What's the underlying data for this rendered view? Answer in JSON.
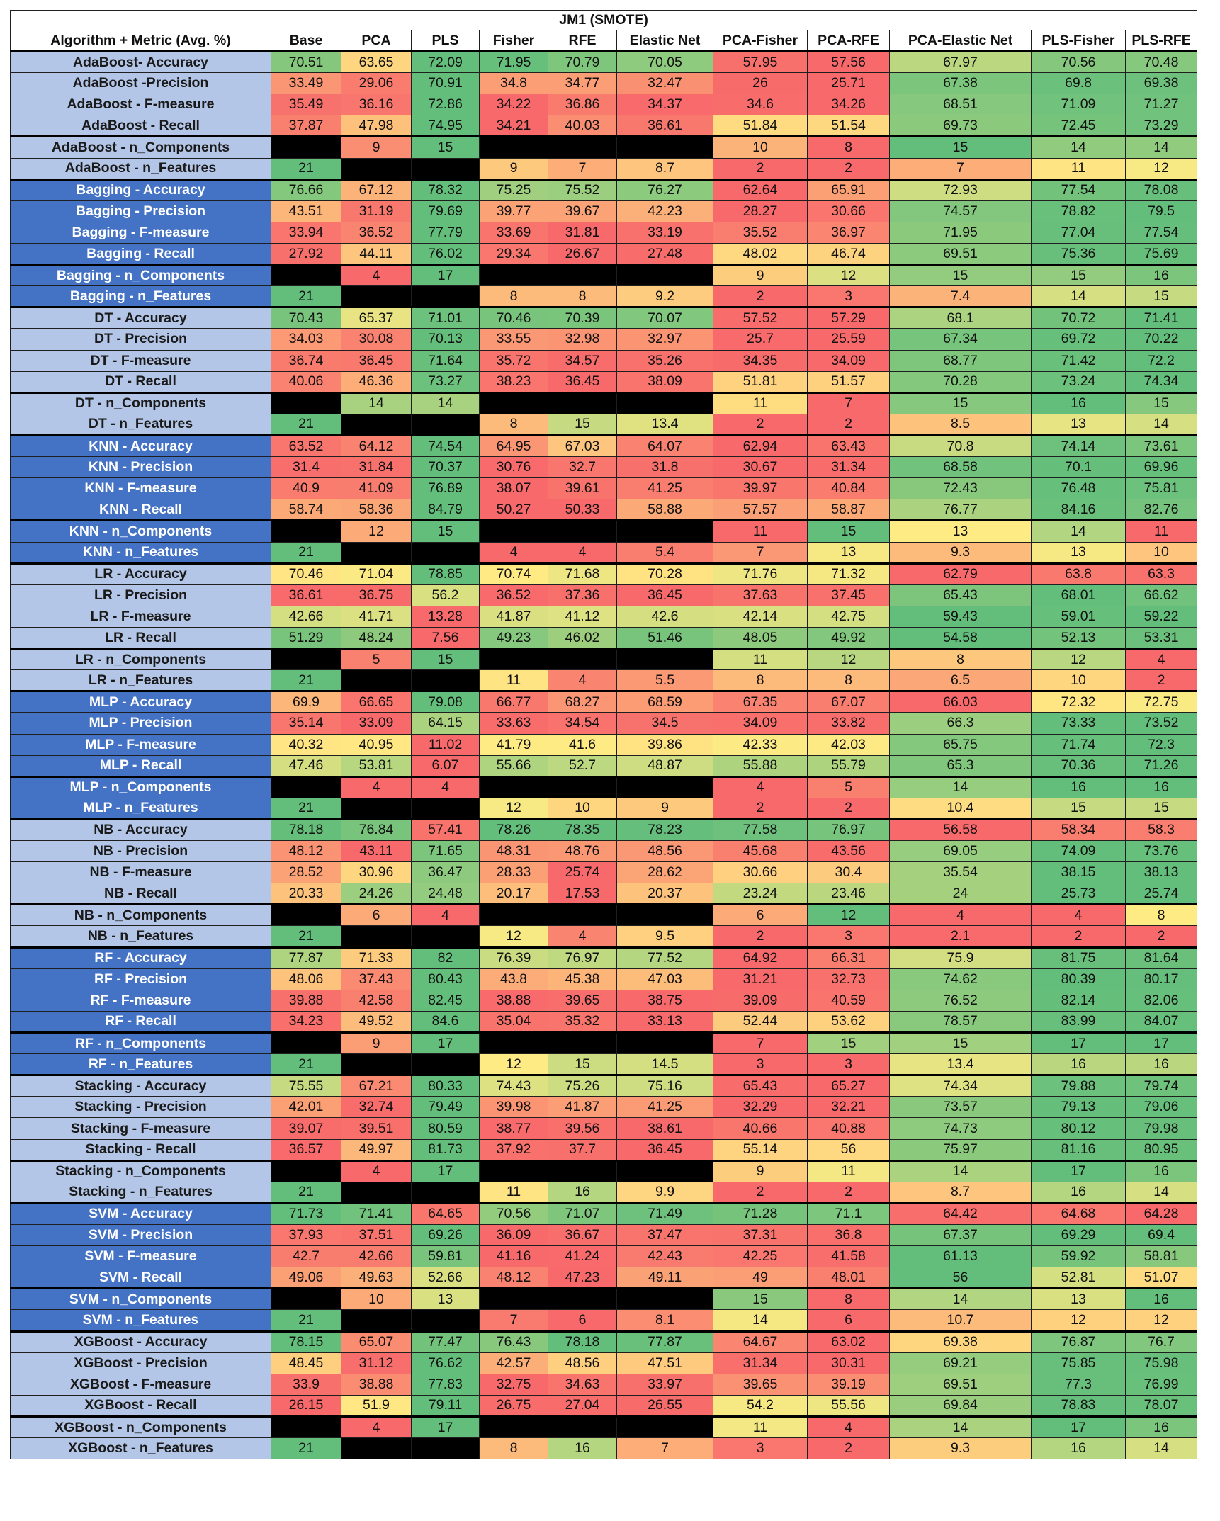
{
  "title": "JM1 (SMOTE)",
  "columns": [
    "Algorithm + Metric (Avg. %)",
    "Base",
    "PCA",
    "PLS",
    "Fisher",
    "RFE",
    "Elastic Net",
    "PCA-Fisher",
    "PCA-RFE",
    "PCA-Elastic Net",
    "PLS-Fisher",
    "PLS-RFE"
  ],
  "colors": {
    "light_label": "#b4c6e7",
    "dark_label": "#4472c4",
    "blank_cell": "#000000",
    "scale_low": "#f8696b",
    "scale_mid": "#ffeb84",
    "scale_high": "#63be7b"
  },
  "rows": [
    {
      "label": "AdaBoost- Accuracy",
      "values": [
        "70.51",
        "63.65",
        "72.09",
        "71.95",
        "70.79",
        "70.05",
        "57.95",
        "57.56",
        "67.97",
        "70.56",
        "70.48"
      ]
    },
    {
      "label": "AdaBoost -Precision",
      "values": [
        "33.49",
        "29.06",
        "70.91",
        "34.8",
        "34.77",
        "32.47",
        "26",
        "25.71",
        "67.38",
        "69.8",
        "69.38"
      ]
    },
    {
      "label": "AdaBoost - F-measure",
      "values": [
        "35.49",
        "36.16",
        "72.86",
        "34.22",
        "36.86",
        "34.37",
        "34.6",
        "34.26",
        "68.51",
        "71.09",
        "71.27"
      ]
    },
    {
      "label": "AdaBoost - Recall",
      "values": [
        "37.87",
        "47.98",
        "74.95",
        "34.21",
        "40.03",
        "36.61",
        "51.84",
        "51.54",
        "69.73",
        "72.45",
        "73.29"
      ]
    },
    {
      "label": "AdaBoost - n_Components",
      "values": [
        "",
        "9",
        "15",
        "",
        "",
        "",
        "10",
        "8",
        "15",
        "14",
        "14"
      ]
    },
    {
      "label": "AdaBoost - n_Features",
      "values": [
        "21",
        "",
        "",
        "9",
        "7",
        "8.7",
        "2",
        "2",
        "7",
        "11",
        "12"
      ]
    },
    {
      "label": "Bagging - Accuracy",
      "values": [
        "76.66",
        "67.12",
        "78.32",
        "75.25",
        "75.52",
        "76.27",
        "62.64",
        "65.91",
        "72.93",
        "77.54",
        "78.08"
      ]
    },
    {
      "label": "Bagging - Precision",
      "values": [
        "43.51",
        "31.19",
        "79.69",
        "39.77",
        "39.67",
        "42.23",
        "28.27",
        "30.66",
        "74.57",
        "78.82",
        "79.5"
      ]
    },
    {
      "label": "Bagging - F-measure",
      "values": [
        "33.94",
        "36.52",
        "77.79",
        "33.69",
        "31.81",
        "33.19",
        "35.52",
        "36.97",
        "71.95",
        "77.04",
        "77.54"
      ]
    },
    {
      "label": "Bagging - Recall",
      "values": [
        "27.92",
        "44.11",
        "76.02",
        "29.34",
        "26.67",
        "27.48",
        "48.02",
        "46.74",
        "69.51",
        "75.36",
        "75.69"
      ]
    },
    {
      "label": "Bagging - n_Components",
      "values": [
        "",
        "4",
        "17",
        "",
        "",
        "",
        "9",
        "12",
        "15",
        "15",
        "16"
      ]
    },
    {
      "label": "Bagging - n_Features",
      "values": [
        "21",
        "",
        "",
        "8",
        "8",
        "9.2",
        "2",
        "3",
        "7.4",
        "14",
        "15"
      ]
    },
    {
      "label": "DT - Accuracy",
      "values": [
        "70.43",
        "65.37",
        "71.01",
        "70.46",
        "70.39",
        "70.07",
        "57.52",
        "57.29",
        "68.1",
        "70.72",
        "71.41"
      ]
    },
    {
      "label": "DT - Precision",
      "values": [
        "34.03",
        "30.08",
        "70.13",
        "33.55",
        "32.98",
        "32.97",
        "25.7",
        "25.59",
        "67.34",
        "69.72",
        "70.22"
      ]
    },
    {
      "label": "DT - F-measure",
      "values": [
        "36.74",
        "36.45",
        "71.64",
        "35.72",
        "34.57",
        "35.26",
        "34.35",
        "34.09",
        "68.77",
        "71.42",
        "72.2"
      ]
    },
    {
      "label": "DT - Recall",
      "values": [
        "40.06",
        "46.36",
        "73.27",
        "38.23",
        "36.45",
        "38.09",
        "51.81",
        "51.57",
        "70.28",
        "73.24",
        "74.34"
      ]
    },
    {
      "label": "DT - n_Components",
      "values": [
        "",
        "14",
        "14",
        "",
        "",
        "",
        "11",
        "7",
        "15",
        "16",
        "15"
      ]
    },
    {
      "label": "DT - n_Features",
      "values": [
        "21",
        "",
        "",
        "8",
        "15",
        "13.4",
        "2",
        "2",
        "8.5",
        "13",
        "14"
      ]
    },
    {
      "label": "KNN - Accuracy",
      "values": [
        "63.52",
        "64.12",
        "74.54",
        "64.95",
        "67.03",
        "64.07",
        "62.94",
        "63.43",
        "70.8",
        "74.14",
        "73.61"
      ]
    },
    {
      "label": "KNN - Precision",
      "values": [
        "31.4",
        "31.84",
        "70.37",
        "30.76",
        "32.7",
        "31.8",
        "30.67",
        "31.34",
        "68.58",
        "70.1",
        "69.96"
      ]
    },
    {
      "label": "KNN - F-measure",
      "values": [
        "40.9",
        "41.09",
        "76.89",
        "38.07",
        "39.61",
        "41.25",
        "39.97",
        "40.84",
        "72.43",
        "76.48",
        "75.81"
      ]
    },
    {
      "label": "KNN - Recall",
      "values": [
        "58.74",
        "58.36",
        "84.79",
        "50.27",
        "50.33",
        "58.88",
        "57.57",
        "58.87",
        "76.77",
        "84.16",
        "82.76"
      ]
    },
    {
      "label": "KNN - n_Components",
      "values": [
        "",
        "12",
        "15",
        "",
        "",
        "",
        "11",
        "15",
        "13",
        "14",
        "11"
      ]
    },
    {
      "label": "KNN - n_Features",
      "values": [
        "21",
        "",
        "",
        "4",
        "4",
        "5.4",
        "7",
        "13",
        "9.3",
        "13",
        "10"
      ]
    },
    {
      "label": "LR - Accuracy",
      "values": [
        "70.46",
        "71.04",
        "78.85",
        "70.74",
        "71.68",
        "70.28",
        "71.76",
        "71.32",
        "62.79",
        "63.8",
        "63.3"
      ]
    },
    {
      "label": "LR - Precision",
      "values": [
        "36.61",
        "36.75",
        "56.2",
        "36.52",
        "37.36",
        "36.45",
        "37.63",
        "37.45",
        "65.43",
        "68.01",
        "66.62"
      ]
    },
    {
      "label": "LR - F-measure",
      "values": [
        "42.66",
        "41.71",
        "13.28",
        "41.87",
        "41.12",
        "42.6",
        "42.14",
        "42.75",
        "59.43",
        "59.01",
        "59.22"
      ]
    },
    {
      "label": "LR - Recall",
      "values": [
        "51.29",
        "48.24",
        "7.56",
        "49.23",
        "46.02",
        "51.46",
        "48.05",
        "49.92",
        "54.58",
        "52.13",
        "53.31"
      ]
    },
    {
      "label": "LR - n_Components",
      "values": [
        "",
        "5",
        "15",
        "",
        "",
        "",
        "11",
        "12",
        "8",
        "12",
        "4"
      ]
    },
    {
      "label": "LR - n_Features",
      "values": [
        "21",
        "",
        "",
        "11",
        "4",
        "5.5",
        "8",
        "8",
        "6.5",
        "10",
        "2"
      ]
    },
    {
      "label": "MLP - Accuracy",
      "values": [
        "69.9",
        "66.65",
        "79.08",
        "66.77",
        "68.27",
        "68.59",
        "67.35",
        "67.07",
        "66.03",
        "72.32",
        "72.75"
      ]
    },
    {
      "label": "MLP -  Precision",
      "values": [
        "35.14",
        "33.09",
        "64.15",
        "33.63",
        "34.54",
        "34.5",
        "34.09",
        "33.82",
        "66.3",
        "73.33",
        "73.52"
      ]
    },
    {
      "label": "MLP -  F-measure",
      "values": [
        "40.32",
        "40.95",
        "11.02",
        "41.79",
        "41.6",
        "39.86",
        "42.33",
        "42.03",
        "65.75",
        "71.74",
        "72.3"
      ]
    },
    {
      "label": "MLP -  Recall",
      "values": [
        "47.46",
        "53.81",
        "6.07",
        "55.66",
        "52.7",
        "48.87",
        "55.88",
        "55.79",
        "65.3",
        "70.36",
        "71.26"
      ]
    },
    {
      "label": "MLP - n_Components",
      "values": [
        "",
        "4",
        "4",
        "",
        "",
        "",
        "4",
        "5",
        "14",
        "16",
        "16"
      ]
    },
    {
      "label": "MLP - n_Features",
      "values": [
        "21",
        "",
        "",
        "12",
        "10",
        "9",
        "2",
        "2",
        "10.4",
        "15",
        "15"
      ]
    },
    {
      "label": "NB - Accuracy",
      "values": [
        "78.18",
        "76.84",
        "57.41",
        "78.26",
        "78.35",
        "78.23",
        "77.58",
        "76.97",
        "56.58",
        "58.34",
        "58.3"
      ]
    },
    {
      "label": "NB - Precision",
      "values": [
        "48.12",
        "43.11",
        "71.65",
        "48.31",
        "48.76",
        "48.56",
        "45.68",
        "43.56",
        "69.05",
        "74.09",
        "73.76"
      ]
    },
    {
      "label": "NB - F-measure",
      "values": [
        "28.52",
        "30.96",
        "36.47",
        "28.33",
        "25.74",
        "28.62",
        "30.66",
        "30.4",
        "35.54",
        "38.15",
        "38.13"
      ]
    },
    {
      "label": "NB - Recall",
      "values": [
        "20.33",
        "24.26",
        "24.48",
        "20.17",
        "17.53",
        "20.37",
        "23.24",
        "23.46",
        "24",
        "25.73",
        "25.74"
      ]
    },
    {
      "label": "NB - n_Components",
      "values": [
        "",
        "6",
        "4",
        "",
        "",
        "",
        "6",
        "12",
        "4",
        "4",
        "8"
      ]
    },
    {
      "label": "NB - n_Features",
      "values": [
        "21",
        "",
        "",
        "12",
        "4",
        "9.5",
        "2",
        "3",
        "2.1",
        "2",
        "2"
      ]
    },
    {
      "label": "RF - Accuracy",
      "values": [
        "77.87",
        "71.33",
        "82",
        "76.39",
        "76.97",
        "77.52",
        "64.92",
        "66.31",
        "75.9",
        "81.75",
        "81.64"
      ]
    },
    {
      "label": "RF - Precision",
      "values": [
        "48.06",
        "37.43",
        "80.43",
        "43.8",
        "45.38",
        "47.03",
        "31.21",
        "32.73",
        "74.62",
        "80.39",
        "80.17"
      ]
    },
    {
      "label": "RF - F-measure",
      "values": [
        "39.88",
        "42.58",
        "82.45",
        "38.88",
        "39.65",
        "38.75",
        "39.09",
        "40.59",
        "76.52",
        "82.14",
        "82.06"
      ]
    },
    {
      "label": "RF - Recall",
      "values": [
        "34.23",
        "49.52",
        "84.6",
        "35.04",
        "35.32",
        "33.13",
        "52.44",
        "53.62",
        "78.57",
        "83.99",
        "84.07"
      ]
    },
    {
      "label": "RF - n_Components",
      "values": [
        "",
        "9",
        "17",
        "",
        "",
        "",
        "7",
        "15",
        "15",
        "17",
        "17"
      ]
    },
    {
      "label": "RF - n_Features",
      "values": [
        "21",
        "",
        "",
        "12",
        "15",
        "14.5",
        "3",
        "3",
        "13.4",
        "16",
        "16"
      ]
    },
    {
      "label": "Stacking - Accuracy",
      "values": [
        "75.55",
        "67.21",
        "80.33",
        "74.43",
        "75.26",
        "75.16",
        "65.43",
        "65.27",
        "74.34",
        "79.88",
        "79.74"
      ]
    },
    {
      "label": "Stacking - Precision",
      "values": [
        "42.01",
        "32.74",
        "79.49",
        "39.98",
        "41.87",
        "41.25",
        "32.29",
        "32.21",
        "73.57",
        "79.13",
        "79.06"
      ]
    },
    {
      "label": "Stacking - F-measure",
      "values": [
        "39.07",
        "39.51",
        "80.59",
        "38.77",
        "39.56",
        "38.61",
        "40.66",
        "40.88",
        "74.73",
        "80.12",
        "79.98"
      ]
    },
    {
      "label": "Stacking - Recall",
      "values": [
        "36.57",
        "49.97",
        "81.73",
        "37.92",
        "37.7",
        "36.45",
        "55.14",
        "56",
        "75.97",
        "81.16",
        "80.95"
      ]
    },
    {
      "label": "Stacking - n_Components",
      "values": [
        "",
        "4",
        "17",
        "",
        "",
        "",
        "9",
        "11",
        "14",
        "17",
        "16"
      ]
    },
    {
      "label": "Stacking - n_Features",
      "values": [
        "21",
        "",
        "",
        "11",
        "16",
        "9.9",
        "2",
        "2",
        "8.7",
        "16",
        "14"
      ]
    },
    {
      "label": "SVM - Accuracy",
      "values": [
        "71.73",
        "71.41",
        "64.65",
        "70.56",
        "71.07",
        "71.49",
        "71.28",
        "71.1",
        "64.42",
        "64.68",
        "64.28"
      ]
    },
    {
      "label": "SVM - Precision",
      "values": [
        "37.93",
        "37.51",
        "69.26",
        "36.09",
        "36.67",
        "37.47",
        "37.31",
        "36.8",
        "67.37",
        "69.29",
        "69.4"
      ]
    },
    {
      "label": "SVM - F-measure",
      "values": [
        "42.7",
        "42.66",
        "59.81",
        "41.16",
        "41.24",
        "42.43",
        "42.25",
        "41.58",
        "61.13",
        "59.92",
        "58.81"
      ]
    },
    {
      "label": "SVM - Recall",
      "values": [
        "49.06",
        "49.63",
        "52.66",
        "48.12",
        "47.23",
        "49.11",
        "49",
        "48.01",
        "56",
        "52.81",
        "51.07"
      ]
    },
    {
      "label": "SVM - n_Components",
      "values": [
        "",
        "10",
        "13",
        "",
        "",
        "",
        "15",
        "8",
        "14",
        "13",
        "16"
      ]
    },
    {
      "label": "SVM - n_Features",
      "values": [
        "21",
        "",
        "",
        "7",
        "6",
        "8.1",
        "14",
        "6",
        "10.7",
        "12",
        "12"
      ]
    },
    {
      "label": "XGBoost - Accuracy",
      "values": [
        "78.15",
        "65.07",
        "77.47",
        "76.43",
        "78.18",
        "77.87",
        "64.67",
        "63.02",
        "69.38",
        "76.87",
        "76.7"
      ]
    },
    {
      "label": "XGBoost - Precision",
      "values": [
        "48.45",
        "31.12",
        "76.62",
        "42.57",
        "48.56",
        "47.51",
        "31.34",
        "30.31",
        "69.21",
        "75.85",
        "75.98"
      ]
    },
    {
      "label": "XGBoost - F-measure",
      "values": [
        "33.9",
        "38.88",
        "77.83",
        "32.75",
        "34.63",
        "33.97",
        "39.65",
        "39.19",
        "69.51",
        "77.3",
        "76.99"
      ]
    },
    {
      "label": "XGBoost - Recall",
      "values": [
        "26.15",
        "51.9",
        "79.11",
        "26.75",
        "27.04",
        "26.55",
        "54.2",
        "55.56",
        "69.84",
        "78.83",
        "78.07"
      ]
    },
    {
      "label": "XGBoost - n_Components",
      "values": [
        "",
        "4",
        "17",
        "",
        "",
        "",
        "11",
        "4",
        "14",
        "17",
        "16"
      ]
    },
    {
      "label": "XGBoost - n_Features",
      "values": [
        "21",
        "",
        "",
        "8",
        "16",
        "7",
        "3",
        "2",
        "9.3",
        "16",
        "14"
      ]
    }
  ]
}
